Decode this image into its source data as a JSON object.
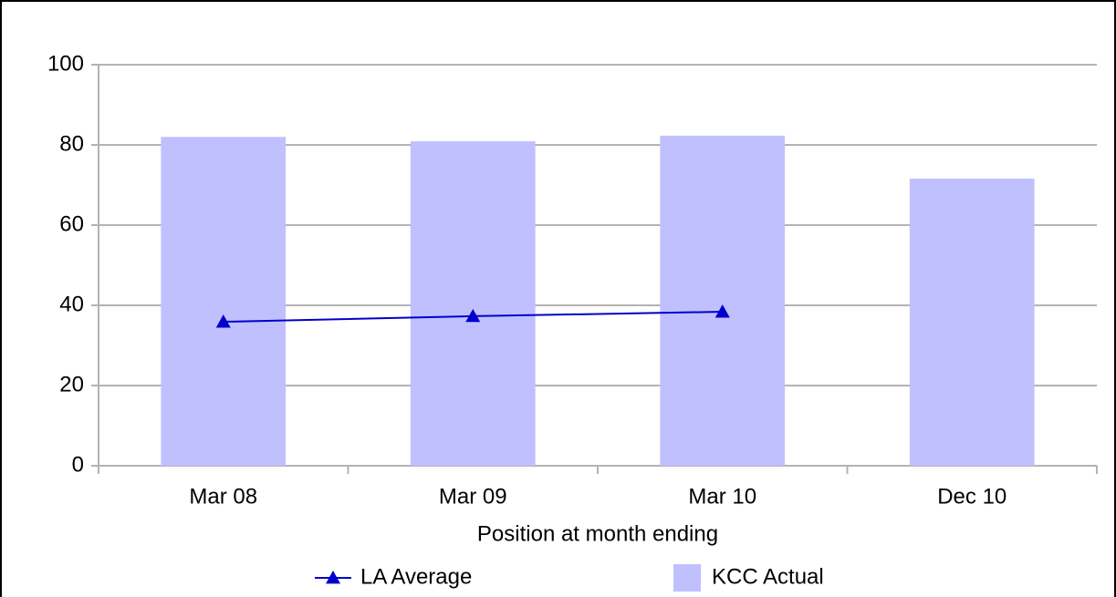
{
  "chart_data": {
    "type": "bar",
    "x_label": "Position at month ending",
    "categories": [
      "Mar 08",
      "Mar 09",
      "Mar 10",
      "Dec 10"
    ],
    "series": [
      {
        "name": "LA Average",
        "type": "line",
        "color": "#0000cc",
        "values": [
          35.9,
          37.3,
          38.4,
          null
        ]
      },
      {
        "name": "KCC Actual",
        "type": "bar",
        "color": "#c0c0ff",
        "values": [
          82,
          80.9,
          82.3,
          71.6
        ]
      }
    ],
    "ylim": [
      0,
      100
    ],
    "yticks": [
      0,
      20,
      40,
      60,
      80,
      100
    ],
    "grid": true
  }
}
